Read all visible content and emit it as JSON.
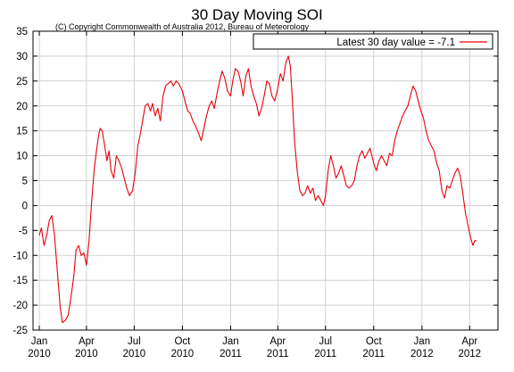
{
  "chart_data": {
    "type": "line",
    "title": "30 Day Moving SOI",
    "subtitle": "(C) Copyright Commonwealth of Australia 2012, Bureau of Meteorology",
    "xlabel": "",
    "ylabel": "",
    "ylim": [
      -25,
      35
    ],
    "yticks": [
      35,
      30,
      25,
      20,
      15,
      10,
      5,
      0,
      -5,
      -10,
      -15,
      -20,
      -25
    ],
    "xlim": [
      "2009-12-20",
      "2012-05-25"
    ],
    "xticks": [
      {
        "date": "2010-01-01",
        "line1": "Jan",
        "line2": "2010"
      },
      {
        "date": "2010-04-01",
        "line1": "Apr",
        "line2": "2010"
      },
      {
        "date": "2010-07-01",
        "line1": "Jul",
        "line2": "2010"
      },
      {
        "date": "2010-10-01",
        "line1": "Oct",
        "line2": "2010"
      },
      {
        "date": "2011-01-01",
        "line1": "Jan",
        "line2": "2011"
      },
      {
        "date": "2011-04-01",
        "line1": "Apr",
        "line2": "2011"
      },
      {
        "date": "2011-07-01",
        "line1": "Jul",
        "line2": "2011"
      },
      {
        "date": "2011-10-01",
        "line1": "Oct",
        "line2": "2011"
      },
      {
        "date": "2012-01-01",
        "line1": "Jan",
        "line2": "2012"
      },
      {
        "date": "2012-04-01",
        "line1": "Apr",
        "line2": "2012"
      }
    ],
    "grid": true,
    "legend": {
      "position": "top-right",
      "label": "Latest 30 day value = -7.1"
    },
    "series": [
      {
        "name": "Latest 30 day value = -7.1",
        "color": "#e8000b",
        "points": [
          [
            "2010-01-01",
            -6.0
          ],
          [
            "2010-01-05",
            -4.5
          ],
          [
            "2010-01-10",
            -8.0
          ],
          [
            "2010-01-15",
            -6.0
          ],
          [
            "2010-01-20",
            -3.0
          ],
          [
            "2010-01-25",
            -2.0
          ],
          [
            "2010-01-30",
            -6.0
          ],
          [
            "2010-02-05",
            -14.0
          ],
          [
            "2010-02-10",
            -20.5
          ],
          [
            "2010-02-14",
            -23.5
          ],
          [
            "2010-02-20",
            -23.0
          ],
          [
            "2010-02-25",
            -22.0
          ],
          [
            "2010-03-03",
            -18.0
          ],
          [
            "2010-03-08",
            -14.0
          ],
          [
            "2010-03-12",
            -9.0
          ],
          [
            "2010-03-17",
            -8.0
          ],
          [
            "2010-03-22",
            -10.0
          ],
          [
            "2010-03-27",
            -9.5
          ],
          [
            "2010-04-01",
            -12.0
          ],
          [
            "2010-04-06",
            -7.0
          ],
          [
            "2010-04-11",
            1.0
          ],
          [
            "2010-04-16",
            7.5
          ],
          [
            "2010-04-20",
            11.0
          ],
          [
            "2010-04-24",
            14.0
          ],
          [
            "2010-04-27",
            15.5
          ],
          [
            "2010-05-01",
            15.0
          ],
          [
            "2010-05-05",
            12.5
          ],
          [
            "2010-05-10",
            9.0
          ],
          [
            "2010-05-14",
            11.0
          ],
          [
            "2010-05-18",
            7.0
          ],
          [
            "2010-05-23",
            5.5
          ],
          [
            "2010-05-28",
            10.0
          ],
          [
            "2010-06-02",
            9.0
          ],
          [
            "2010-06-07",
            7.5
          ],
          [
            "2010-06-12",
            5.5
          ],
          [
            "2010-06-17",
            3.5
          ],
          [
            "2010-06-22",
            2.0
          ],
          [
            "2010-06-28",
            3.0
          ],
          [
            "2010-07-03",
            6.5
          ],
          [
            "2010-07-08",
            12.0
          ],
          [
            "2010-07-13",
            14.5
          ],
          [
            "2010-07-17",
            17.0
          ],
          [
            "2010-07-22",
            20.0
          ],
          [
            "2010-07-27",
            20.5
          ],
          [
            "2010-08-01",
            19.0
          ],
          [
            "2010-08-05",
            20.5
          ],
          [
            "2010-08-10",
            18.0
          ],
          [
            "2010-08-15",
            19.5
          ],
          [
            "2010-08-20",
            17.0
          ],
          [
            "2010-08-25",
            22.0
          ],
          [
            "2010-08-30",
            24.0
          ],
          [
            "2010-09-04",
            24.5
          ],
          [
            "2010-09-09",
            25.0
          ],
          [
            "2010-09-14",
            24.0
          ],
          [
            "2010-09-19",
            25.0
          ],
          [
            "2010-09-24",
            24.5
          ],
          [
            "2010-10-01",
            23.0
          ],
          [
            "2010-10-06",
            21.0
          ],
          [
            "2010-10-11",
            19.0
          ],
          [
            "2010-10-16",
            18.5
          ],
          [
            "2010-10-21",
            17.0
          ],
          [
            "2010-10-26",
            16.0
          ],
          [
            "2010-11-01",
            14.5
          ],
          [
            "2010-11-06",
            13.0
          ],
          [
            "2010-11-11",
            15.5
          ],
          [
            "2010-11-16",
            18.0
          ],
          [
            "2010-11-21",
            20.0
          ],
          [
            "2010-11-26",
            21.0
          ],
          [
            "2010-12-01",
            19.5
          ],
          [
            "2010-12-06",
            22.5
          ],
          [
            "2010-12-11",
            25.0
          ],
          [
            "2010-12-16",
            27.0
          ],
          [
            "2010-12-21",
            25.5
          ],
          [
            "2010-12-26",
            23.0
          ],
          [
            "2011-01-01",
            22.0
          ],
          [
            "2011-01-05",
            25.0
          ],
          [
            "2011-01-10",
            27.5
          ],
          [
            "2011-01-15",
            27.0
          ],
          [
            "2011-01-20",
            25.0
          ],
          [
            "2011-01-25",
            22.0
          ],
          [
            "2011-01-30",
            26.0
          ],
          [
            "2011-02-04",
            27.5
          ],
          [
            "2011-02-09",
            24.0
          ],
          [
            "2011-02-14",
            22.0
          ],
          [
            "2011-02-19",
            20.5
          ],
          [
            "2011-02-24",
            18.0
          ],
          [
            "2011-03-01",
            19.5
          ],
          [
            "2011-03-06",
            22.0
          ],
          [
            "2011-03-11",
            25.0
          ],
          [
            "2011-03-16",
            24.5
          ],
          [
            "2011-03-21",
            22.0
          ],
          [
            "2011-03-26",
            21.0
          ],
          [
            "2011-04-01",
            23.5
          ],
          [
            "2011-04-06",
            26.5
          ],
          [
            "2011-04-11",
            25.0
          ],
          [
            "2011-04-16",
            28.5
          ],
          [
            "2011-04-21",
            30.0
          ],
          [
            "2011-04-25",
            28.0
          ],
          [
            "2011-04-29",
            21.0
          ],
          [
            "2011-05-03",
            13.0
          ],
          [
            "2011-05-08",
            7.0
          ],
          [
            "2011-05-13",
            3.0
          ],
          [
            "2011-05-18",
            2.0
          ],
          [
            "2011-05-23",
            2.5
          ],
          [
            "2011-05-28",
            4.0
          ],
          [
            "2011-06-02",
            2.5
          ],
          [
            "2011-06-07",
            3.5
          ],
          [
            "2011-06-12",
            1.0
          ],
          [
            "2011-06-17",
            2.0
          ],
          [
            "2011-06-22",
            1.0
          ],
          [
            "2011-06-27",
            0.0
          ],
          [
            "2011-07-01",
            2.0
          ],
          [
            "2011-07-06",
            7.0
          ],
          [
            "2011-07-11",
            10.0
          ],
          [
            "2011-07-16",
            8.0
          ],
          [
            "2011-07-21",
            5.5
          ],
          [
            "2011-07-26",
            6.5
          ],
          [
            "2011-07-31",
            8.0
          ],
          [
            "2011-08-05",
            6.0
          ],
          [
            "2011-08-10",
            4.0
          ],
          [
            "2011-08-15",
            3.5
          ],
          [
            "2011-08-20",
            4.0
          ],
          [
            "2011-08-25",
            5.0
          ],
          [
            "2011-08-30",
            8.0
          ],
          [
            "2011-09-04",
            10.0
          ],
          [
            "2011-09-09",
            11.0
          ],
          [
            "2011-09-14",
            9.5
          ],
          [
            "2011-09-19",
            10.5
          ],
          [
            "2011-09-24",
            11.5
          ],
          [
            "2011-10-01",
            8.5
          ],
          [
            "2011-10-06",
            7.0
          ],
          [
            "2011-10-11",
            9.0
          ],
          [
            "2011-10-16",
            10.0
          ],
          [
            "2011-10-21",
            9.0
          ],
          [
            "2011-10-26",
            8.0
          ],
          [
            "2011-10-31",
            10.5
          ],
          [
            "2011-11-05",
            10.0
          ],
          [
            "2011-11-10",
            13.0
          ],
          [
            "2011-11-15",
            15.0
          ],
          [
            "2011-11-20",
            16.5
          ],
          [
            "2011-11-25",
            18.0
          ],
          [
            "2011-11-30",
            19.0
          ],
          [
            "2011-12-05",
            20.0
          ],
          [
            "2011-12-10",
            22.0
          ],
          [
            "2011-12-15",
            24.0
          ],
          [
            "2011-12-20",
            23.0
          ],
          [
            "2011-12-25",
            21.0
          ],
          [
            "2011-12-30",
            19.0
          ],
          [
            "2012-01-04",
            17.5
          ],
          [
            "2012-01-09",
            15.0
          ],
          [
            "2012-01-14",
            13.0
          ],
          [
            "2012-01-19",
            12.0
          ],
          [
            "2012-01-24",
            11.0
          ],
          [
            "2012-01-29",
            8.5
          ],
          [
            "2012-02-03",
            7.0
          ],
          [
            "2012-02-08",
            3.0
          ],
          [
            "2012-02-13",
            1.5
          ],
          [
            "2012-02-18",
            4.0
          ],
          [
            "2012-02-23",
            3.5
          ],
          [
            "2012-02-28",
            5.0
          ],
          [
            "2012-03-04",
            6.5
          ],
          [
            "2012-03-09",
            7.5
          ],
          [
            "2012-03-14",
            6.0
          ],
          [
            "2012-03-19",
            2.5
          ],
          [
            "2012-03-24",
            -1.5
          ],
          [
            "2012-03-29",
            -4.0
          ],
          [
            "2012-04-03",
            -6.5
          ],
          [
            "2012-04-07",
            -8.0
          ],
          [
            "2012-04-11",
            -7.0
          ],
          [
            "2012-04-14",
            -7.1
          ]
        ]
      }
    ]
  }
}
